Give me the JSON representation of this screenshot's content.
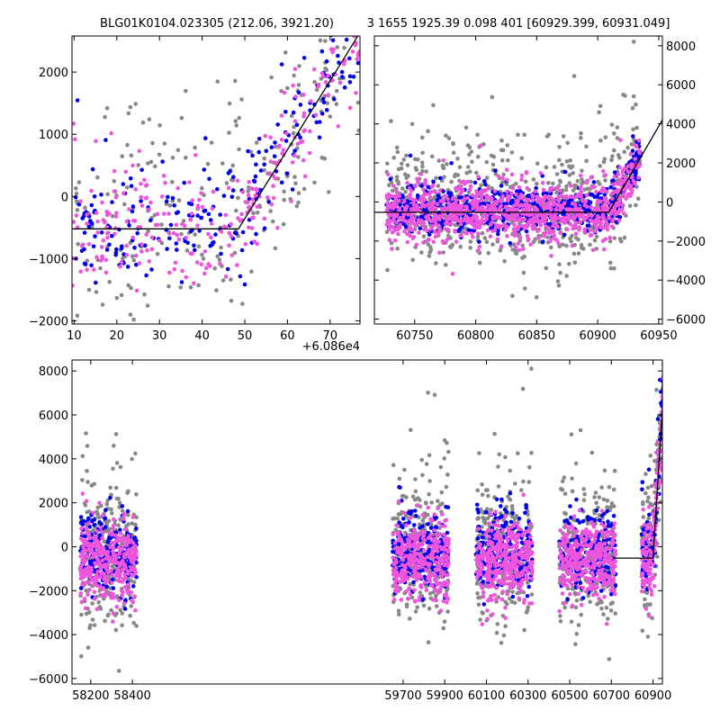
{
  "chart_data": [
    {
      "id": "top_left",
      "type": "scatter",
      "title": "BLG01K0104.023305 (212.06, 3921.20)",
      "xlim": [
        9.5,
        77
      ],
      "ylim": [
        -2050,
        2580
      ],
      "xticks": [
        10,
        20,
        30,
        40,
        50,
        60,
        70
      ],
      "yticks": [
        -2000,
        -1000,
        0,
        1000,
        2000
      ],
      "ytick_labels": [
        "−2000",
        "−1000",
        "0",
        "1000",
        "2000"
      ],
      "x_offset_label": "+6.086e4",
      "model_line": {
        "x": [
          9.5,
          48.5,
          76.5
        ],
        "y": [
          -520,
          -520,
          2580
        ]
      },
      "series": [
        {
          "name": "gray",
          "color": "#888888",
          "seed": 101,
          "count": 230,
          "spread": 850,
          "extra_up": 500
        },
        {
          "name": "blue",
          "color": "#0000ee",
          "seed": 202,
          "count": 220,
          "spread": 420,
          "extra_up": 400
        },
        {
          "name": "magenta",
          "color": "#ee55dd",
          "seed": 303,
          "count": 260,
          "spread": 420,
          "extra_up": 0
        }
      ]
    },
    {
      "id": "top_right",
      "type": "scatter",
      "title": "3 1655 1925.39 0.098 401 [60929.399, 60931.049]",
      "xlim": [
        60717,
        60953
      ],
      "ylim": [
        -6250,
        8500
      ],
      "xticks": [
        60750,
        60800,
        60850,
        60900,
        60950
      ],
      "yticks": [
        -6000,
        -4000,
        -2000,
        0,
        2000,
        4000,
        6000,
        8000
      ],
      "ytick_labels": [
        "−6000",
        "−4000",
        "−2000",
        "0",
        "2000",
        "4000",
        "6000",
        "8000"
      ],
      "model_line": {
        "x": [
          60717,
          60909,
          60953
        ],
        "y": [
          -530,
          -530,
          4200
        ]
      },
      "data_range": [
        60727,
        60935
      ],
      "series": [
        {
          "name": "gray",
          "color": "#888888",
          "seed": 404,
          "count": 700,
          "spread": 1300,
          "extra_up": 1200
        },
        {
          "name": "blue",
          "color": "#0000ee",
          "seed": 505,
          "count": 650,
          "spread": 500,
          "extra_up": 500
        },
        {
          "name": "magenta",
          "color": "#ee55dd",
          "seed": 606,
          "count": 900,
          "spread": 650,
          "extra_up": -300
        }
      ]
    },
    {
      "id": "bottom",
      "type": "scatter",
      "title": "",
      "xlim": [
        58110,
        60945
      ],
      "ylim": [
        -6250,
        8500
      ],
      "xticks": [
        58200,
        58400,
        59700,
        59900,
        60100,
        60300,
        60500,
        60700,
        60900
      ],
      "yticks": [
        -6000,
        -4000,
        -2000,
        0,
        2000,
        4000,
        6000,
        8000
      ],
      "ytick_labels": [
        "−6000",
        "−4000",
        "−2000",
        "0",
        "2000",
        "4000",
        "6000",
        "8000"
      ],
      "model_line": {
        "x": [
          60710,
          60900,
          60960
        ],
        "y": [
          -520,
          -520,
          8600
        ]
      },
      "seasons": [
        {
          "x_range": [
            58150,
            58420
          ]
        },
        {
          "x_range": [
            59650,
            59920
          ]
        },
        {
          "x_range": [
            60050,
            60320
          ]
        },
        {
          "x_range": [
            60450,
            60720
          ]
        },
        {
          "x_range": [
            60845,
            61110
          ]
        }
      ],
      "series": [
        {
          "name": "gray",
          "color": "#888888",
          "seed": 707,
          "count": 260,
          "spread": 1500,
          "extra_up": 1500
        },
        {
          "name": "blue",
          "color": "#0000ee",
          "seed": 808,
          "count": 240,
          "spread": 700,
          "extra_up": 700
        },
        {
          "name": "magenta",
          "color": "#ee55dd",
          "seed": 909,
          "count": 320,
          "spread": 800,
          "extra_up": -400
        }
      ]
    }
  ]
}
